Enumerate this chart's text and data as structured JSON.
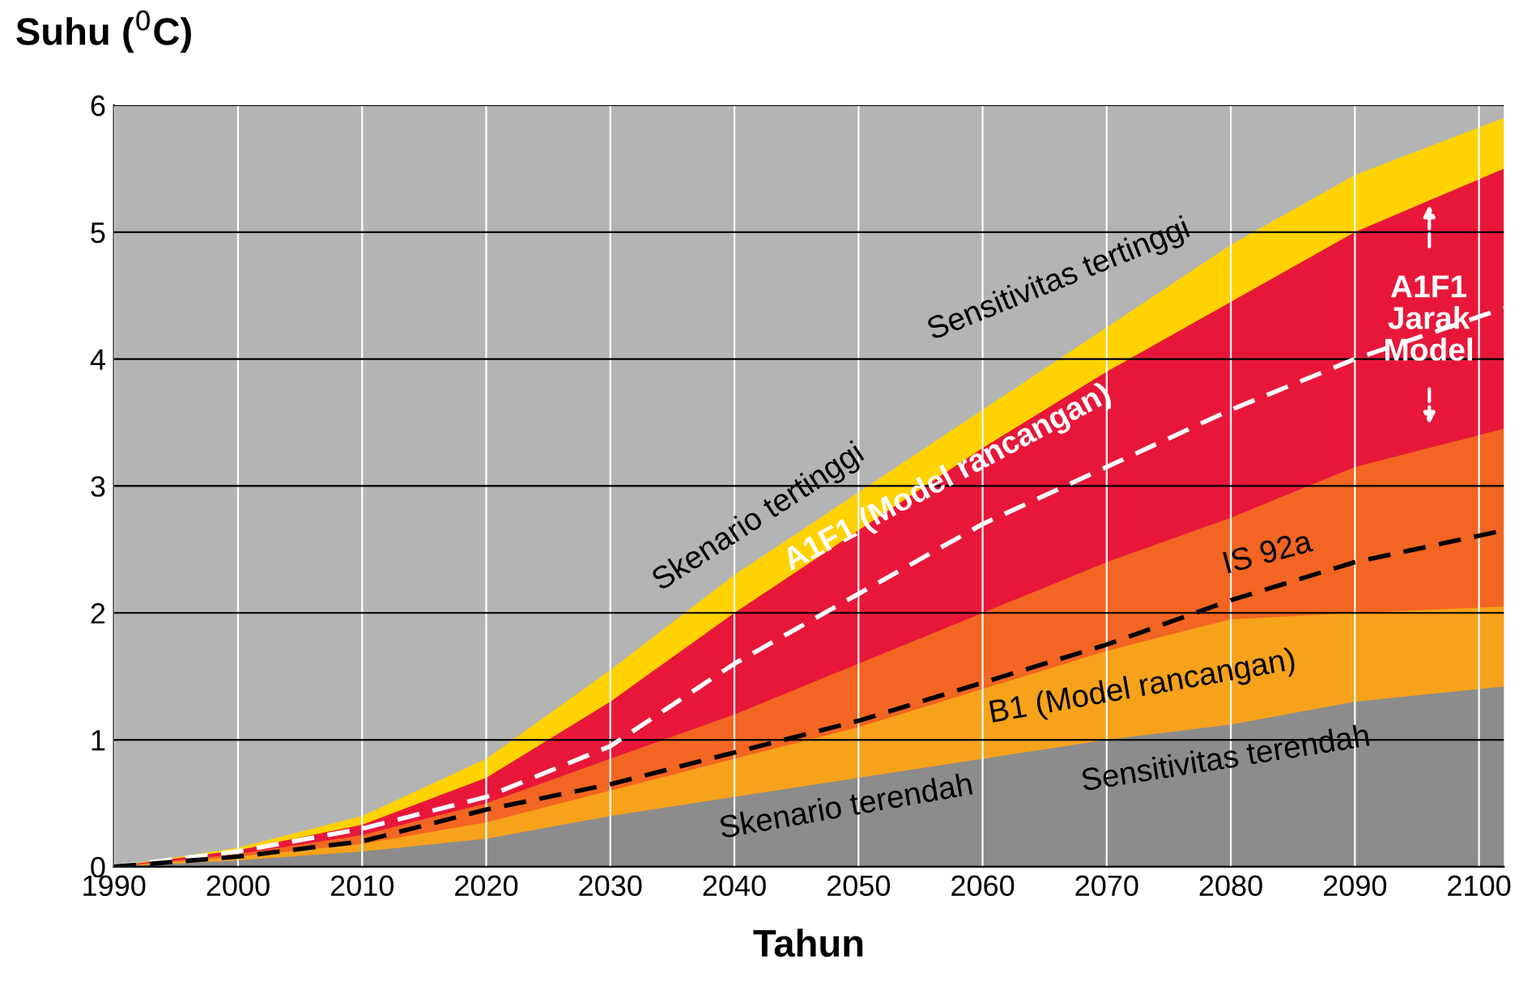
{
  "chart_data": {
    "type": "area",
    "xlabel": "Tahun",
    "ylabel": "Suhu ($^{0}$C)",
    "x": [
      1990,
      2000,
      2010,
      2020,
      2030,
      2040,
      2050,
      2060,
      2070,
      2080,
      2090,
      2102
    ],
    "xlim": [
      1990,
      2102
    ],
    "xticks": [
      1990,
      2000,
      2010,
      2020,
      2030,
      2040,
      2050,
      2060,
      2070,
      2080,
      2090,
      2100
    ],
    "ylim": [
      0,
      6
    ],
    "yticks": [
      0,
      1,
      2,
      3,
      4,
      5,
      6
    ],
    "grid": true,
    "legend": false,
    "series": [
      {
        "color": "#ffd200",
        "values": [
          0,
          0.15,
          0.4,
          0.85,
          1.55,
          2.3,
          2.95,
          3.6,
          4.25,
          4.9,
          5.45,
          5.9
        ]
      },
      {
        "color": "#e8173a",
        "values": [
          0,
          0.13,
          0.33,
          0.7,
          1.3,
          2.0,
          2.65,
          3.3,
          3.9,
          4.45,
          5.0,
          5.5
        ]
      },
      {
        "color": "#f26522",
        "values": [
          0,
          0.1,
          0.25,
          0.5,
          0.85,
          1.2,
          1.6,
          2.0,
          2.4,
          2.75,
          3.15,
          3.45
        ]
      },
      {
        "color": "#f7a21b",
        "values": [
          0,
          0.08,
          0.18,
          0.35,
          0.6,
          0.85,
          1.1,
          1.4,
          1.7,
          1.95,
          2.0,
          2.05
        ]
      },
      {
        "color": "#8c8c8c",
        "values": [
          0,
          0.05,
          0.12,
          0.22,
          0.4,
          0.55,
          0.7,
          0.85,
          1.0,
          1.12,
          1.3,
          1.42
        ]
      },
      {
        "type": "line",
        "color": "#ffffff",
        "line_style": "dashed",
        "values": [
          0,
          0.12,
          0.3,
          0.55,
          0.95,
          1.6,
          2.15,
          2.7,
          3.15,
          3.6,
          4.0,
          4.4
        ]
      },
      {
        "type": "line",
        "color": "#000000",
        "line_style": "dashed",
        "values": [
          0,
          0.08,
          0.2,
          0.45,
          0.65,
          0.9,
          1.15,
          1.45,
          1.75,
          2.1,
          2.4,
          2.65
        ]
      }
    ],
    "annotations": [
      "Sensitivitas tertinggi",
      "Skenario tertinggi",
      "A1F1 (Model rancangan)",
      "A1F1\nJarak\nModel",
      "IS 92a",
      "B1 (Model rancangan)",
      "Sensitivitas terendah",
      "Skenario terendah"
    ]
  }
}
